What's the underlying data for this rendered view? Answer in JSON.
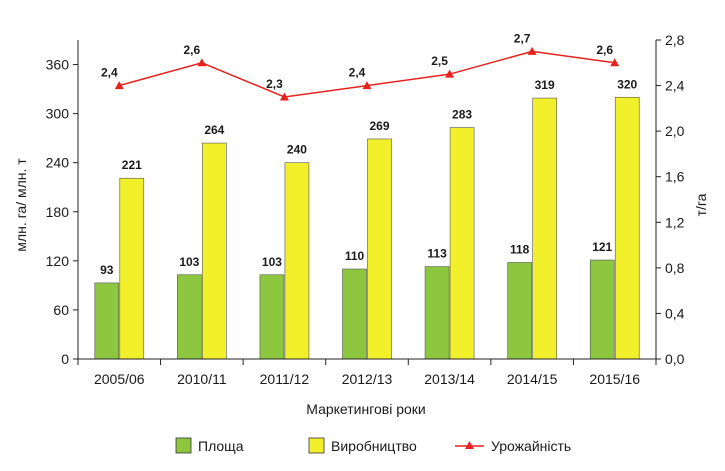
{
  "chart_data": {
    "type": "bar+line",
    "title": "",
    "xlabel": "Маркетингові роки",
    "ylabel": "млн. га/ млн. т",
    "y2label": "т/га",
    "categories": [
      "2005/06",
      "2010/11",
      "2011/12",
      "2012/13",
      "2013/14",
      "2014/15",
      "2015/16"
    ],
    "ylim": [
      0,
      390
    ],
    "yticks": [
      0,
      60,
      120,
      180,
      240,
      300,
      360
    ],
    "y2lim": [
      0,
      2.8
    ],
    "y2ticks": [
      "0,0",
      "0,4",
      "0,8",
      "1,2",
      "1,6",
      "2,0",
      "2,4",
      "2,8"
    ],
    "series": [
      {
        "name": "Площа",
        "type": "bar",
        "axis": "left",
        "color": "#8dc63f",
        "values": [
          93,
          103,
          103,
          110,
          113,
          118,
          121
        ]
      },
      {
        "name": "Виробництво",
        "type": "bar",
        "axis": "left",
        "color": "#f2ef2b",
        "values": [
          221,
          264,
          240,
          269,
          283,
          319,
          320
        ]
      },
      {
        "name": "Урожайність",
        "type": "line",
        "axis": "right",
        "color": "#e8231f",
        "values": [
          2.4,
          2.6,
          2.3,
          2.4,
          2.5,
          2.7,
          2.6
        ],
        "labels": [
          "2,4",
          "2,6",
          "2,3",
          "2,4",
          "2,5",
          "2,7",
          "2,6"
        ]
      }
    ],
    "legend_position": "bottom"
  }
}
